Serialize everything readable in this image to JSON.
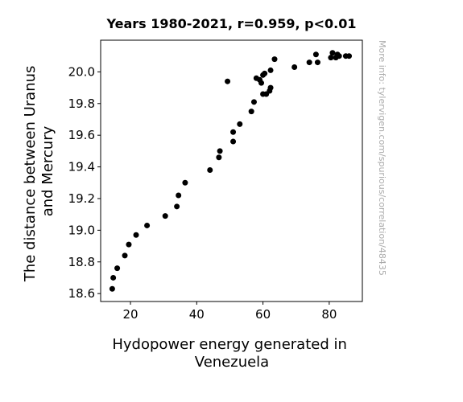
{
  "chart_data": {
    "type": "scatter",
    "title": "Years 1980-2021, r=0.959, p<0.01",
    "xlabel": [
      "Hydopower energy generated in",
      "Venezuela"
    ],
    "ylabel": [
      "The distance between Uranus",
      "and Mercury"
    ],
    "xlim": [
      11,
      90
    ],
    "ylim": [
      18.55,
      20.2
    ],
    "xticks": [
      20,
      40,
      60,
      80
    ],
    "yticks": [
      18.6,
      18.8,
      19.0,
      19.2,
      19.4,
      19.6,
      19.8,
      20.0
    ],
    "grid": false,
    "marker_color": "#000000",
    "points": [
      [
        14.5,
        18.63
      ],
      [
        14.8,
        18.7
      ],
      [
        16.0,
        18.76
      ],
      [
        18.3,
        18.84
      ],
      [
        19.5,
        18.91
      ],
      [
        21.7,
        18.97
      ],
      [
        25.0,
        19.03
      ],
      [
        30.5,
        19.09
      ],
      [
        34.0,
        19.15
      ],
      [
        34.5,
        19.22
      ],
      [
        36.5,
        19.3
      ],
      [
        44.0,
        19.38
      ],
      [
        46.7,
        19.46
      ],
      [
        47.0,
        19.5
      ],
      [
        51.0,
        19.56
      ],
      [
        51.0,
        19.62
      ],
      [
        53.0,
        19.67
      ],
      [
        56.5,
        19.75
      ],
      [
        57.3,
        19.81
      ],
      [
        49.3,
        19.94
      ],
      [
        58.0,
        19.96
      ],
      [
        59.0,
        19.95
      ],
      [
        59.5,
        19.93
      ],
      [
        60.0,
        19.98
      ],
      [
        60.5,
        19.99
      ],
      [
        60.0,
        19.86
      ],
      [
        61.0,
        19.86
      ],
      [
        62.0,
        19.88
      ],
      [
        62.3,
        19.9
      ],
      [
        62.3,
        20.01
      ],
      [
        63.5,
        20.08
      ],
      [
        69.5,
        20.03
      ],
      [
        74.0,
        20.06
      ],
      [
        76.0,
        20.11
      ],
      [
        76.5,
        20.06
      ],
      [
        80.5,
        20.09
      ],
      [
        81.0,
        20.12
      ],
      [
        82.0,
        20.09
      ],
      [
        82.5,
        20.11
      ],
      [
        83.0,
        20.1
      ],
      [
        85.0,
        20.1
      ],
      [
        86.0,
        20.1
      ]
    ]
  },
  "watermark": "More info: tylervigen.com/spurious/correlation/48435"
}
